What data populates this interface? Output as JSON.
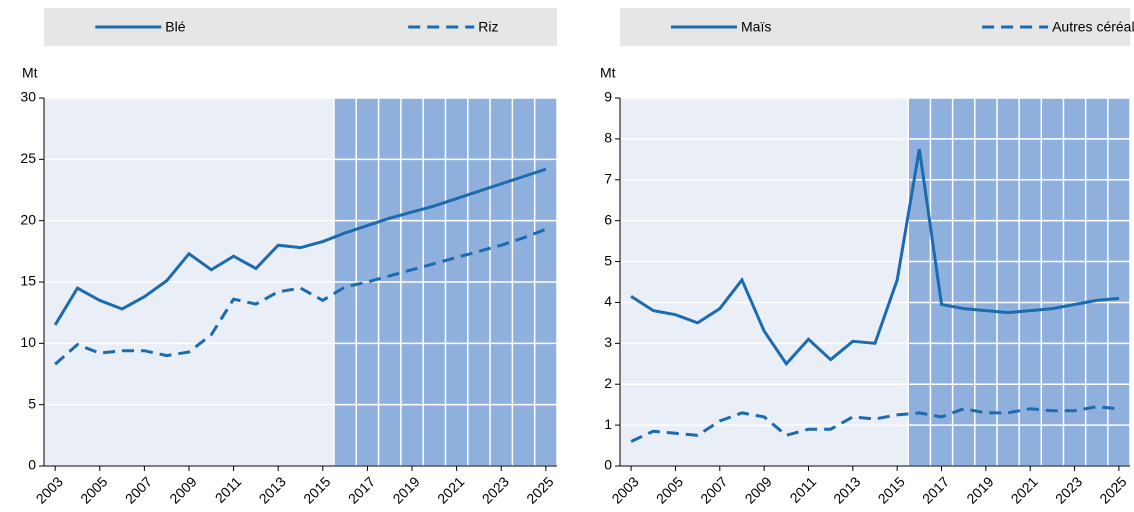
{
  "chart_data": [
    {
      "type": "line",
      "y_label": "Mt",
      "x": [
        2003,
        2004,
        2005,
        2006,
        2007,
        2008,
        2009,
        2010,
        2011,
        2012,
        2013,
        2014,
        2015,
        2016,
        2017,
        2018,
        2019,
        2020,
        2021,
        2022,
        2023,
        2024,
        2025
      ],
      "series": [
        {
          "name": "Blé",
          "color": "#1b6bb0",
          "line_style": "solid",
          "values": [
            11.5,
            14.5,
            13.5,
            12.8,
            13.8,
            15.1,
            17.3,
            16.0,
            17.1,
            16.1,
            18.0,
            17.8,
            18.3,
            19.0,
            19.6,
            20.2,
            20.7,
            21.2,
            21.8,
            22.4,
            23.0,
            23.6,
            24.2
          ]
        },
        {
          "name": "Riz",
          "color": "#1b6bb0",
          "line_style": "dashed",
          "values": [
            8.3,
            9.9,
            9.2,
            9.4,
            9.4,
            9.0,
            9.3,
            10.7,
            13.6,
            13.2,
            14.2,
            14.5,
            13.5,
            14.6,
            15.0,
            15.5,
            16.0,
            16.5,
            17.0,
            17.5,
            18.0,
            18.6,
            19.3
          ]
        }
      ],
      "xlim": [
        2002.5,
        2025.5
      ],
      "xticks": [
        2003,
        2005,
        2007,
        2009,
        2011,
        2013,
        2015,
        2017,
        2019,
        2021,
        2023,
        2025
      ],
      "ylim": [
        0,
        30
      ],
      "yticks": [
        0,
        5,
        10,
        15,
        20,
        25,
        30
      ],
      "grid": true,
      "shade_xlim": [
        2015.5,
        2025.5
      ],
      "shade_color": "#8fb0dc",
      "plot_background": "#eaeef6"
    },
    {
      "type": "line",
      "y_label": "Mt",
      "x": [
        2003,
        2004,
        2005,
        2006,
        2007,
        2008,
        2009,
        2010,
        2011,
        2012,
        2013,
        2014,
        2015,
        2016,
        2017,
        2018,
        2019,
        2020,
        2021,
        2022,
        2023,
        2024,
        2025
      ],
      "series": [
        {
          "name": "Maïs",
          "color": "#1b6bb0",
          "line_style": "solid",
          "values": [
            4.15,
            3.8,
            3.7,
            3.5,
            3.85,
            4.55,
            3.3,
            2.5,
            3.1,
            2.6,
            3.05,
            3.0,
            4.55,
            7.75,
            3.95,
            3.85,
            3.8,
            3.75,
            3.8,
            3.85,
            3.95,
            4.05,
            4.1
          ]
        },
        {
          "name": "Autres céréales second.",
          "color": "#1b6bb0",
          "line_style": "dashed",
          "values": [
            0.6,
            0.85,
            0.8,
            0.75,
            1.1,
            1.3,
            1.2,
            0.75,
            0.9,
            0.9,
            1.2,
            1.15,
            1.25,
            1.3,
            1.2,
            1.4,
            1.3,
            1.3,
            1.4,
            1.35,
            1.35,
            1.45,
            1.4
          ]
        }
      ],
      "xlim": [
        2002.5,
        2025.5
      ],
      "xticks": [
        2003,
        2005,
        2007,
        2009,
        2011,
        2013,
        2015,
        2017,
        2019,
        2021,
        2023,
        2025
      ],
      "ylim": [
        0,
        9
      ],
      "yticks": [
        0,
        1,
        2,
        3,
        4,
        5,
        6,
        7,
        8,
        9
      ],
      "grid": true,
      "shade_xlim": [
        2015.5,
        2025.5
      ],
      "shade_color": "#8fb0dc",
      "plot_background": "#eaeef6"
    }
  ]
}
